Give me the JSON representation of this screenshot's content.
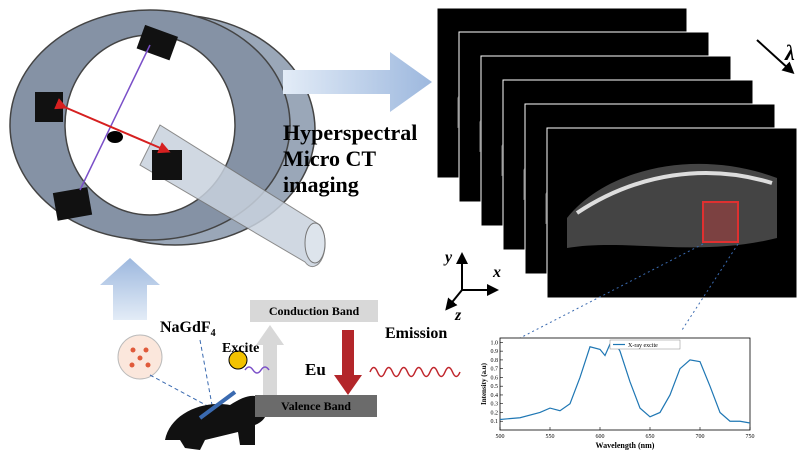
{
  "labels": {
    "imaging_title": [
      "Hyperspectral",
      "Micro CT",
      "imaging"
    ],
    "lambda": "λ",
    "axis_y": "y",
    "axis_x": "x",
    "axis_z": "z",
    "probe": {
      "text": "NaGdF",
      "subscript": "4"
    },
    "excite": "Excite",
    "conduction_band": "Conduction Band",
    "valence_band": "Valence Band",
    "element": "Eu",
    "emission": "Emission"
  },
  "inset_chart": {
    "type": "line",
    "x": [
      500,
      520,
      540,
      550,
      560,
      570,
      580,
      590,
      600,
      605,
      610,
      615,
      620,
      630,
      640,
      650,
      660,
      670,
      680,
      690,
      700,
      710,
      720,
      730,
      740,
      750
    ],
    "series": [
      {
        "name": "X-ray excite",
        "color": "#1f77b4",
        "values": [
          0.12,
          0.14,
          0.2,
          0.25,
          0.22,
          0.3,
          0.6,
          0.95,
          0.92,
          0.85,
          0.98,
          1.0,
          0.9,
          0.55,
          0.25,
          0.15,
          0.2,
          0.4,
          0.7,
          0.8,
          0.78,
          0.5,
          0.2,
          0.1,
          0.1,
          0.08
        ]
      }
    ],
    "xlabel": "Wavelength (nm)",
    "ylabel": "Intensity (a.u)",
    "xlim": [
      500,
      750
    ],
    "ylim": [
      0,
      1.05
    ],
    "xticks": [
      500,
      550,
      600,
      650,
      700,
      750
    ],
    "yticks": [
      0.1,
      0.2,
      0.3,
      0.4,
      0.5,
      0.6,
      0.7,
      0.8,
      0.9,
      {
        "value": 1,
        "label": "1.0"
      }
    ]
  }
}
